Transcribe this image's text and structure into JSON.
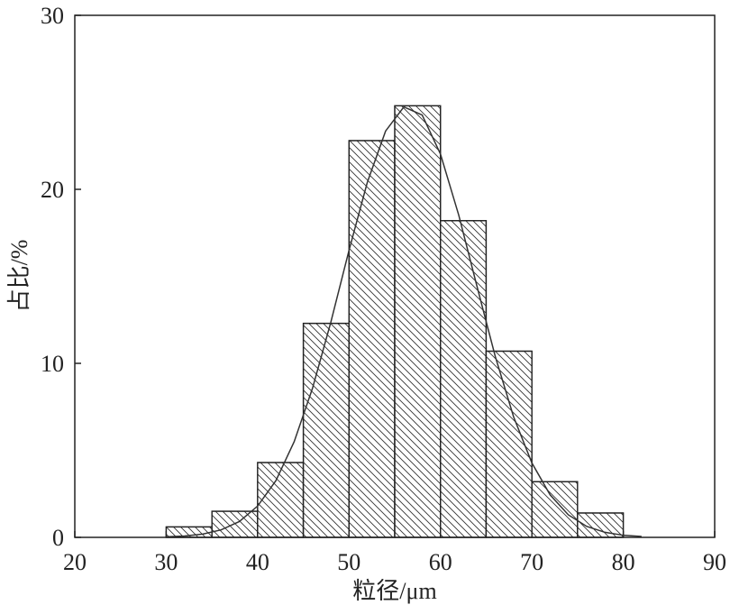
{
  "chart_data": {
    "type": "histogram",
    "xlabel": "粒径/μm",
    "ylabel": "占比/%",
    "bins": [
      30,
      35,
      40,
      45,
      50,
      55,
      60,
      65,
      70,
      75,
      80
    ],
    "values": [
      0.6,
      1.5,
      4.3,
      12.3,
      22.8,
      24.8,
      18.2,
      10.7,
      3.2,
      1.4
    ],
    "color": "#ffffff",
    "edgecolor": "#222222",
    "hatch": "\\\\",
    "fit": {
      "color": "#333333",
      "x": [
        30,
        32,
        34,
        36,
        38,
        40,
        42,
        44,
        46,
        48,
        50,
        52,
        54,
        56,
        58,
        60,
        62,
        64,
        66,
        68,
        70,
        72,
        74,
        76,
        78,
        80,
        82
      ],
      "values": [
        0.03,
        0.08,
        0.19,
        0.43,
        0.91,
        1.8,
        3.26,
        5.5,
        8.56,
        12.35,
        16.5,
        20.4,
        23.35,
        24.74,
        24.27,
        22.03,
        18.52,
        14.42,
        10.39,
        6.93,
        4.28,
        2.44,
        1.29,
        0.63,
        0.29,
        0.12,
        0.05
      ]
    },
    "xlim": [
      20,
      90
    ],
    "ylim": [
      0,
      30
    ],
    "xticks": [
      20,
      30,
      40,
      50,
      60,
      70,
      80,
      90
    ],
    "yticks": [
      0,
      10,
      20,
      30
    ]
  }
}
